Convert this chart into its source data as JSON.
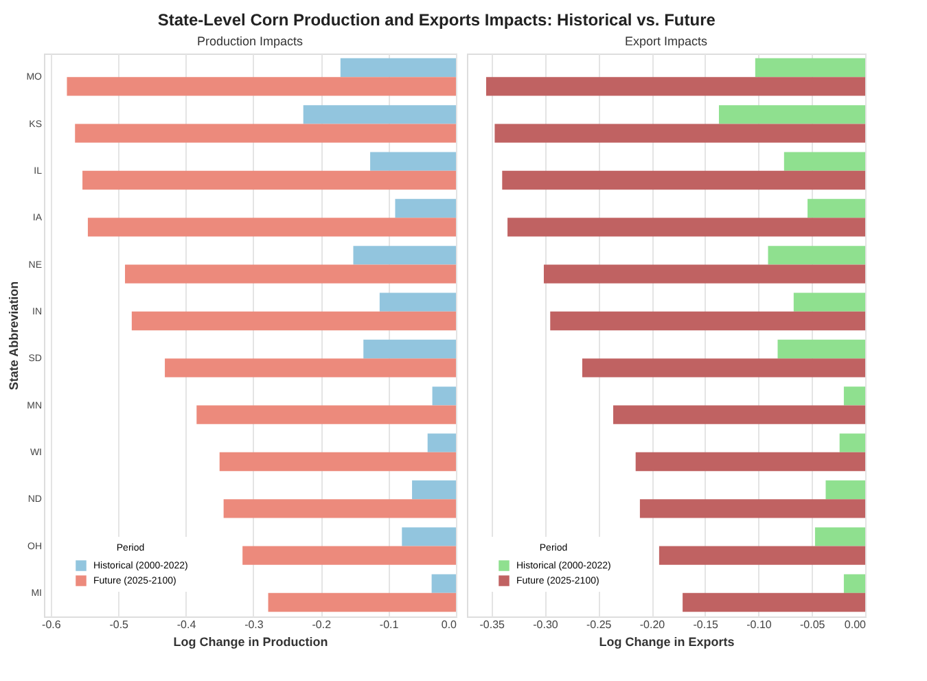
{
  "chart_data": [
    {
      "type": "bar",
      "orientation": "horizontal",
      "title": "State-Level Corn Production and Exports Impacts: Historical vs. Future",
      "subtitle": "Production Impacts",
      "xlabel": "Log Change in Production",
      "ylabel": "State Abbreviation",
      "legend_title": "Period",
      "categories": [
        "MO",
        "KS",
        "IL",
        "IA",
        "NE",
        "IN",
        "SD",
        "MN",
        "WI",
        "ND",
        "OH",
        "MI"
      ],
      "series": [
        {
          "name": "Historical (2000-2022)",
          "color": "#92c5de",
          "values": [
            -0.171,
            -0.226,
            -0.127,
            -0.09,
            -0.152,
            -0.113,
            -0.137,
            -0.035,
            -0.042,
            -0.065,
            -0.08,
            -0.036
          ]
        },
        {
          "name": "Future (2025-2100)",
          "color": "#ec8a7c",
          "values": [
            -0.576,
            -0.564,
            -0.553,
            -0.545,
            -0.49,
            -0.48,
            -0.431,
            -0.384,
            -0.35,
            -0.344,
            -0.316,
            -0.278
          ]
        }
      ],
      "xlim": [
        -0.61,
        0
      ],
      "xticks": [
        {
          "value": -0.6,
          "label": "-0.6"
        },
        {
          "value": -0.5,
          "label": "-0.5"
        },
        {
          "value": -0.4,
          "label": "-0.4"
        },
        {
          "value": -0.3,
          "label": "-0.3"
        },
        {
          "value": -0.2,
          "label": "-0.2"
        },
        {
          "value": -0.1,
          "label": "-0.1"
        },
        {
          "value": 0,
          "label": "0.0"
        }
      ],
      "grid": "x",
      "legend": "bottom left"
    },
    {
      "type": "bar",
      "orientation": "horizontal",
      "subtitle": "Export Impacts",
      "xlabel": "Log Change in Exports",
      "legend_title": "Period",
      "categories": [
        null,
        null,
        null,
        null,
        null,
        null,
        null,
        null,
        null,
        null,
        null,
        null
      ],
      "series": [
        {
          "name": "Historical (2000-2022)",
          "color": "#8fe08f",
          "values": [
            -0.103,
            -0.137,
            -0.076,
            -0.054,
            -0.091,
            -0.067,
            -0.082,
            -0.02,
            -0.024,
            -0.037,
            -0.047,
            -0.02
          ]
        },
        {
          "name": "Future (2025-2100)",
          "color": "#c06262",
          "values": [
            -0.355,
            -0.347,
            -0.34,
            -0.335,
            -0.301,
            -0.295,
            -0.265,
            -0.236,
            -0.215,
            -0.211,
            -0.193,
            -0.171
          ]
        }
      ],
      "xlim": [
        -0.373,
        0
      ],
      "xticks": [
        {
          "value": -0.35,
          "label": "-0.35"
        },
        {
          "value": -0.3,
          "label": "-0.30"
        },
        {
          "value": -0.25,
          "label": "-0.25"
        },
        {
          "value": -0.2,
          "label": "-0.20"
        },
        {
          "value": -0.15,
          "label": "-0.15"
        },
        {
          "value": -0.1,
          "label": "-0.10"
        },
        {
          "value": -0.05,
          "label": "-0.05"
        },
        {
          "value": 0,
          "label": "0.00"
        }
      ],
      "grid": "x",
      "legend": "bottom left",
      "tick_labels": "x"
    }
  ]
}
